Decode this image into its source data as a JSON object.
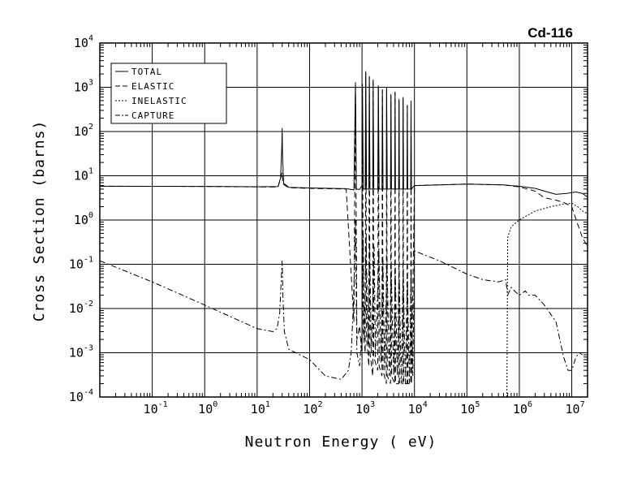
{
  "chart_data": {
    "type": "line",
    "title": "Cd-116",
    "xlabel": "Neutron Energy ( eV)",
    "ylabel": "Cross Section (barns)",
    "x_scale": "log",
    "y_scale": "log",
    "xlim": [
      0.01,
      20000000
    ],
    "ylim": [
      0.0001,
      10000
    ],
    "grid": true,
    "legend_position": "top-left",
    "x_ticks": [
      {
        "base": "10",
        "exp": "-1",
        "value": 0.1
      },
      {
        "base": "10",
        "exp": "0",
        "value": 1
      },
      {
        "base": "10",
        "exp": "1",
        "value": 10
      },
      {
        "base": "10",
        "exp": "2",
        "value": 100
      },
      {
        "base": "10",
        "exp": "3",
        "value": 1000
      },
      {
        "base": "10",
        "exp": "4",
        "value": 10000
      },
      {
        "base": "10",
        "exp": "5",
        "value": 100000
      },
      {
        "base": "10",
        "exp": "6",
        "value": 1000000
      },
      {
        "base": "10",
        "exp": "7",
        "value": 10000000
      }
    ],
    "y_ticks": [
      {
        "base": "10",
        "exp": "-4",
        "value": 0.0001
      },
      {
        "base": "10",
        "exp": "-3",
        "value": 0.001
      },
      {
        "base": "10",
        "exp": "-2",
        "value": 0.01
      },
      {
        "base": "10",
        "exp": "-1",
        "value": 0.1
      },
      {
        "base": "10",
        "exp": "0",
        "value": 1
      },
      {
        "base": "10",
        "exp": "1",
        "value": 10
      },
      {
        "base": "10",
        "exp": "2",
        "value": 100
      },
      {
        "base": "10",
        "exp": "3",
        "value": 1000
      },
      {
        "base": "10",
        "exp": "4",
        "value": 10000
      }
    ],
    "series": [
      {
        "name": "TOTAL",
        "dash": "solid",
        "points": [
          [
            0.01,
            5.8
          ],
          [
            1,
            5.75
          ],
          [
            10,
            5.65
          ],
          [
            25,
            5.7
          ],
          [
            28,
            9
          ],
          [
            29.5,
            40
          ],
          [
            30,
            120
          ],
          [
            30.5,
            30
          ],
          [
            32,
            6.8
          ],
          [
            40,
            5.5
          ],
          [
            100,
            5.3
          ],
          [
            500,
            5.1
          ],
          [
            700,
            4.8
          ],
          [
            750,
            1300
          ],
          [
            780,
            5
          ],
          [
            900,
            4.9
          ],
          [
            1000,
            6
          ],
          [
            1020,
            1200
          ],
          [
            1060,
            5
          ],
          [
            1150,
            5
          ],
          [
            1180,
            2300
          ],
          [
            1220,
            5
          ],
          [
            1350,
            5
          ],
          [
            1380,
            1800
          ],
          [
            1420,
            5
          ],
          [
            1600,
            5
          ],
          [
            1630,
            1500
          ],
          [
            1680,
            5
          ],
          [
            2000,
            5
          ],
          [
            2050,
            1100
          ],
          [
            2120,
            5
          ],
          [
            2400,
            5
          ],
          [
            2450,
            900
          ],
          [
            2520,
            5
          ],
          [
            2900,
            5
          ],
          [
            2950,
            1000
          ],
          [
            3030,
            5
          ],
          [
            3500,
            5
          ],
          [
            3560,
            700
          ],
          [
            3650,
            5
          ],
          [
            4200,
            5
          ],
          [
            4260,
            800
          ],
          [
            4350,
            5
          ],
          [
            5000,
            5
          ],
          [
            5080,
            550
          ],
          [
            5180,
            5
          ],
          [
            6000,
            5
          ],
          [
            6080,
            600
          ],
          [
            6200,
            5
          ],
          [
            7200,
            5
          ],
          [
            7300,
            400
          ],
          [
            7450,
            5
          ],
          [
            8500,
            5
          ],
          [
            8600,
            500
          ],
          [
            8750,
            5
          ],
          [
            10000,
            6
          ],
          [
            100000,
            6.5
          ],
          [
            500000,
            6.2
          ],
          [
            1000000,
            5.8
          ],
          [
            2000000,
            5.2
          ],
          [
            3000000,
            4.5
          ],
          [
            5000000,
            3.8
          ],
          [
            8000000,
            4.0
          ],
          [
            12000000,
            4.3
          ],
          [
            16000000,
            4.0
          ],
          [
            20000000,
            3.3
          ]
        ]
      },
      {
        "name": "ELASTIC",
        "dash": "long-dash",
        "points": [
          [
            0.01,
            5.8
          ],
          [
            1,
            5.75
          ],
          [
            10,
            5.6
          ],
          [
            25,
            5.6
          ],
          [
            28,
            8.5
          ],
          [
            30,
            12
          ],
          [
            31,
            6.5
          ],
          [
            40,
            5.4
          ],
          [
            100,
            5.2
          ],
          [
            500,
            5
          ],
          [
            700,
            0.005
          ],
          [
            750,
            1200
          ],
          [
            800,
            0.002
          ],
          [
            900,
            0.004
          ],
          [
            1000,
            0.0008
          ],
          [
            1020,
            1100
          ],
          [
            1060,
            0.003
          ],
          [
            1150,
            0.001
          ],
          [
            1180,
            2100
          ],
          [
            1220,
            0.002
          ],
          [
            1350,
            0.0005
          ],
          [
            1380,
            1700
          ],
          [
            1420,
            0.001
          ],
          [
            1600,
            0.0003
          ],
          [
            1630,
            1400
          ],
          [
            1680,
            0.0008
          ],
          [
            2000,
            0.0004
          ],
          [
            2050,
            1000
          ],
          [
            2120,
            0.0005
          ],
          [
            2400,
            0.0003
          ],
          [
            2450,
            850
          ],
          [
            2520,
            0.0004
          ],
          [
            2900,
            0.0002
          ],
          [
            2950,
            900
          ],
          [
            3030,
            0.0003
          ],
          [
            3500,
            0.0002
          ],
          [
            3560,
            650
          ],
          [
            3650,
            0.0003
          ],
          [
            4200,
            0.0002
          ],
          [
            4260,
            750
          ],
          [
            4350,
            0.0002
          ],
          [
            5000,
            0.0002
          ],
          [
            5080,
            500
          ],
          [
            5180,
            0.0002
          ],
          [
            6000,
            0.0002
          ],
          [
            6080,
            550
          ],
          [
            6200,
            0.0002
          ],
          [
            7200,
            0.0002
          ],
          [
            7300,
            380
          ],
          [
            7450,
            0.0002
          ],
          [
            8500,
            0.0002
          ],
          [
            8600,
            450
          ],
          [
            8750,
            0.0002
          ],
          [
            10000,
            6
          ],
          [
            100000,
            6.5
          ],
          [
            500000,
            6.2
          ],
          [
            1000000,
            5.6
          ],
          [
            2000000,
            4.5
          ],
          [
            3000000,
            3.2
          ],
          [
            5000000,
            2.8
          ],
          [
            7000000,
            2.5
          ],
          [
            10000000,
            2.0
          ],
          [
            13000000,
            0.8
          ],
          [
            16000000,
            0.4
          ],
          [
            20000000,
            0.25
          ]
        ]
      },
      {
        "name": "INELASTIC",
        "dash": "short-dash",
        "points": [
          [
            580000,
            0.0001
          ],
          [
            600000,
            0.4
          ],
          [
            700000,
            0.7
          ],
          [
            1000000,
            1.0
          ],
          [
            2000000,
            1.6
          ],
          [
            4000000,
            2.0
          ],
          [
            7000000,
            2.3
          ],
          [
            10000000,
            2.4
          ],
          [
            13000000,
            2.0
          ],
          [
            16000000,
            1.6
          ],
          [
            20000000,
            1.4
          ]
        ]
      },
      {
        "name": "CAPTURE",
        "dash": "dash-dot",
        "points": [
          [
            0.01,
            0.12
          ],
          [
            0.1,
            0.04
          ],
          [
            1,
            0.012
          ],
          [
            10,
            0.0035
          ],
          [
            20,
            0.003
          ],
          [
            24,
            0.0035
          ],
          [
            27,
            0.008
          ],
          [
            29,
            0.05
          ],
          [
            30,
            0.12
          ],
          [
            31,
            0.02
          ],
          [
            33,
            0.003
          ],
          [
            40,
            0.0012
          ],
          [
            100,
            0.0007
          ],
          [
            200,
            0.0003
          ],
          [
            400,
            0.00025
          ],
          [
            550,
            0.0004
          ],
          [
            620,
            0.001
          ],
          [
            680,
            0.01
          ],
          [
            720,
            0.1
          ],
          [
            750,
            1
          ],
          [
            770,
            0.05
          ],
          [
            800,
            0.001
          ],
          [
            900,
            0.0005
          ],
          [
            1000,
            0.003
          ],
          [
            1050,
            0.5
          ],
          [
            1100,
            0.002
          ],
          [
            1200,
            0.4
          ],
          [
            1300,
            0.0015
          ],
          [
            1400,
            0.3
          ],
          [
            1500,
            0.001
          ],
          [
            1700,
            0.25
          ],
          [
            1800,
            0.0008
          ],
          [
            2100,
            0.2
          ],
          [
            2300,
            0.0006
          ],
          [
            2500,
            0.15
          ],
          [
            2700,
            0.0004
          ],
          [
            3000,
            0.15
          ],
          [
            3300,
            0.0003
          ],
          [
            3600,
            0.1
          ],
          [
            4000,
            0.0003
          ],
          [
            4300,
            0.1
          ],
          [
            4700,
            0.0003
          ],
          [
            5100,
            0.08
          ],
          [
            5600,
            0.0002
          ],
          [
            6100,
            0.08
          ],
          [
            6700,
            0.0002
          ],
          [
            7300,
            0.06
          ],
          [
            8000,
            0.0002
          ],
          [
            8600,
            0.06
          ],
          [
            9300,
            0.0003
          ],
          [
            10000,
            0.2
          ],
          [
            30000,
            0.12
          ],
          [
            100000,
            0.06
          ],
          [
            200000,
            0.045
          ],
          [
            400000,
            0.04
          ],
          [
            550000,
            0.045
          ],
          [
            600000,
            0.02
          ],
          [
            700000,
            0.03
          ],
          [
            900000,
            0.022
          ],
          [
            1000000,
            0.02
          ],
          [
            1300000,
            0.025
          ],
          [
            1500000,
            0.02
          ],
          [
            2000000,
            0.02
          ],
          [
            3000000,
            0.012
          ],
          [
            5000000,
            0.005
          ],
          [
            7000000,
            0.0008
          ],
          [
            8500000,
            0.0004
          ],
          [
            10000000,
            0.0004
          ],
          [
            12000000,
            0.0008
          ],
          [
            14000000,
            0.001
          ],
          [
            16000000,
            0.0009
          ]
        ]
      }
    ]
  }
}
